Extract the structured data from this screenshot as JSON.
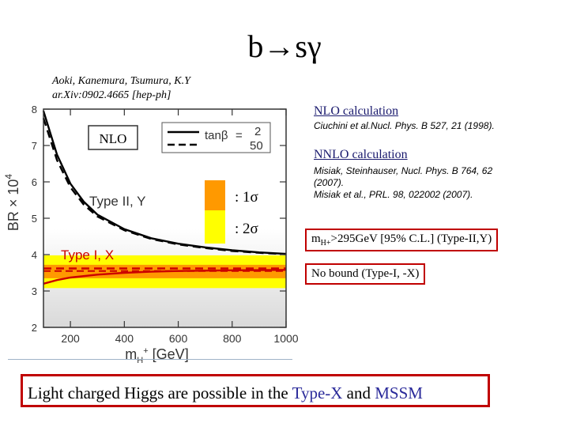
{
  "slide": {
    "title": "b→sγ",
    "reference_authors": "Aoki, Kanemura, Tsumura, K.Y",
    "reference_arxiv": "ar.Xiv:0902.4665 [hep-ph]",
    "nlo_heading": "NLO calculation",
    "nlo_citation": "Ciuchini et al.Nucl. Phys. B 527, 21 (1998).",
    "nnlo_heading": "NNLO calculation",
    "nnlo_citation_lines": [
      "Misiak, Steinhauser, Nucl. Phys. B 764, 62",
      "(2007).",
      "Misiak et al., PRL. 98, 022002 (2007)."
    ],
    "bound_box": {
      "prefix": "m",
      "subscript": "H+",
      "text": ">295GeV [95% C.L.] (Type-II,Y)"
    },
    "no_bound_text": "No bound (Type-I,  -X)",
    "footer": {
      "part1": "Light charged Higgs are possible in the ",
      "typex": "Type-X",
      "part2": " and ",
      "mssm": "MSSM"
    },
    "colors": {
      "accent_red": "#c00000",
      "highlight_blue": "#2a2a9a"
    }
  },
  "chart_data": {
    "type": "line",
    "label_nlo": "NLO",
    "xlabel": "m",
    "xlabel_sub": "H",
    "xlabel_sup": "+",
    "xlabel_unit": " [GeV]",
    "ylabel": "BR × 10",
    "ylabel_sup": "4",
    "xlim": [
      100,
      1000
    ],
    "ylim": [
      2,
      8
    ],
    "xticks": [
      200,
      400,
      600,
      800,
      1000
    ],
    "yticks": [
      2,
      3,
      4,
      5,
      6,
      7,
      8
    ],
    "grid": false,
    "legend": {
      "position": "top-right",
      "symbol": "tanβ",
      "entries": [
        {
          "value": "2",
          "style": "solid"
        },
        {
          "value": "50",
          "style": "dashed"
        }
      ]
    },
    "bands": [
      {
        "name": ": 1σ",
        "y": [
          3.35,
          3.72
        ],
        "color": "#ff9900"
      },
      {
        "name": ": 2σ",
        "y": [
          3.08,
          3.98
        ],
        "color": "#ffff00"
      }
    ],
    "central_line": {
      "y": 3.55,
      "color": "#cc0000",
      "style": "dashed"
    },
    "curve_labels": [
      {
        "text": "Type II, Y",
        "color": "#333333"
      },
      {
        "text": "Type I, X",
        "color": "#cc0000"
      }
    ],
    "series": [
      {
        "name": "Type II, Y (tanβ = 2)",
        "color": "#000000",
        "style": "solid",
        "x": [
          100,
          150,
          200,
          250,
          300,
          400,
          500,
          600,
          700,
          800,
          900,
          1000
        ],
        "y": [
          7.95,
          6.75,
          5.95,
          5.45,
          5.1,
          4.7,
          4.45,
          4.3,
          4.2,
          4.12,
          4.06,
          4.02
        ]
      },
      {
        "name": "Type II, Y (tanβ = 50)",
        "color": "#000000",
        "style": "dashed",
        "x": [
          100,
          150,
          200,
          250,
          300,
          400,
          500,
          600,
          700,
          800,
          900,
          1000
        ],
        "y": [
          7.75,
          6.6,
          5.85,
          5.37,
          5.05,
          4.67,
          4.43,
          4.28,
          4.18,
          4.1,
          4.05,
          4.01
        ]
      },
      {
        "name": "Type I, X (tanβ = 2)",
        "color": "#cc0000",
        "style": "solid",
        "x": [
          100,
          150,
          200,
          300,
          400,
          500,
          600,
          800,
          1000
        ],
        "y": [
          3.2,
          3.3,
          3.37,
          3.45,
          3.5,
          3.53,
          3.55,
          3.57,
          3.58
        ]
      },
      {
        "name": "Type I, X (tanβ = 50)",
        "color": "#cc0000",
        "style": "dashed",
        "x": [
          100,
          1000
        ],
        "y": [
          3.62,
          3.62
        ]
      }
    ]
  }
}
